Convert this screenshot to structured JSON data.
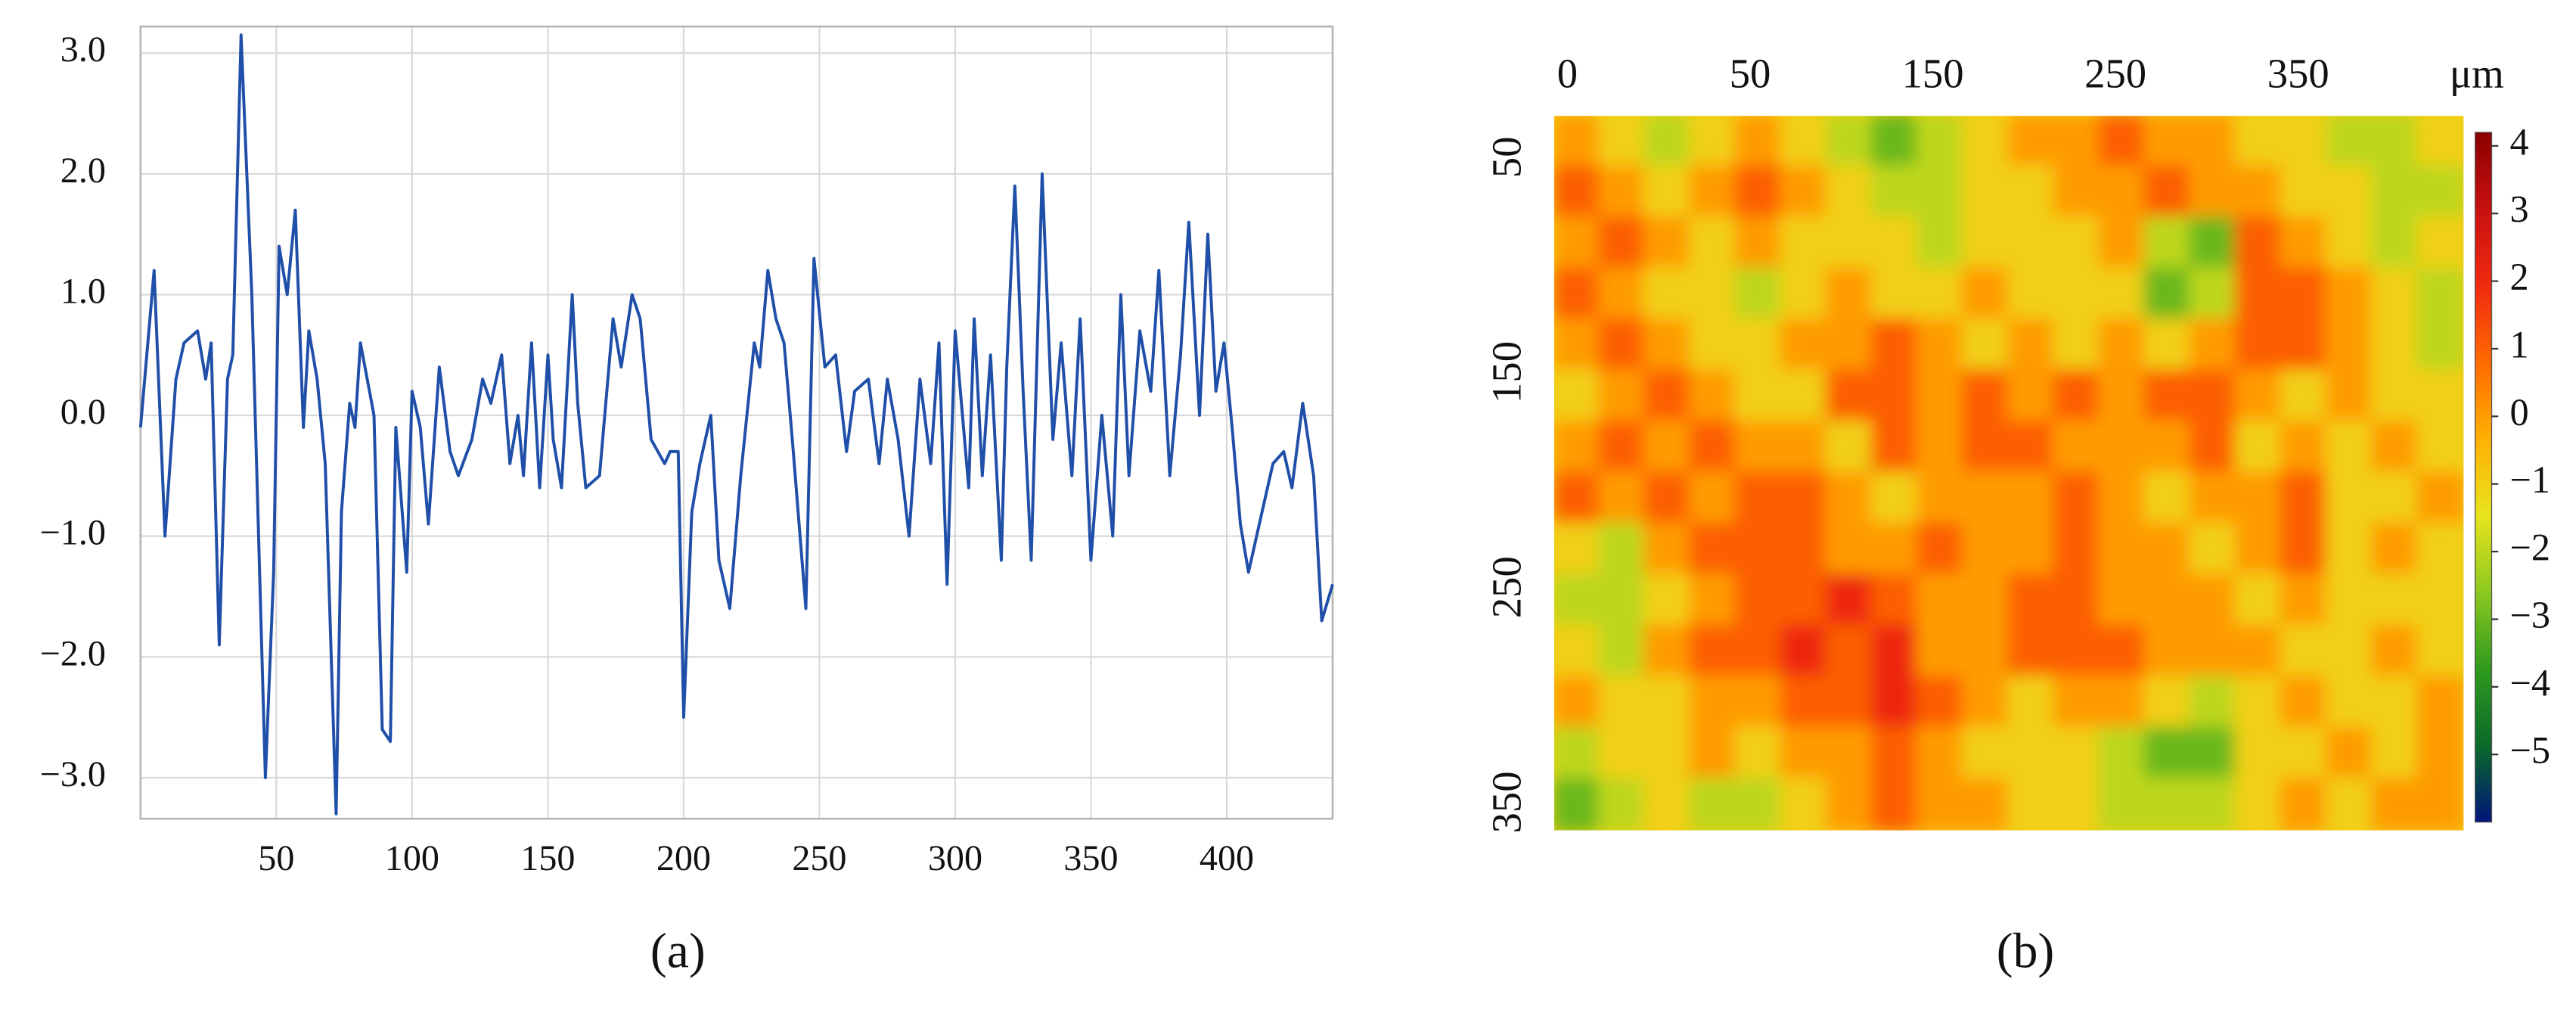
{
  "chart_data": [
    {
      "type": "line",
      "caption": "(a)",
      "color": "#1f4fa8",
      "grid": true,
      "xlim": [
        0,
        439
      ],
      "ylim": [
        -3.34,
        3.22
      ],
      "xticks": [
        50,
        100,
        150,
        200,
        250,
        300,
        350,
        400
      ],
      "yticks": [
        {
          "value": 3,
          "label": "3.0"
        },
        {
          "value": 2,
          "label": "2.0"
        },
        {
          "value": 1,
          "label": "1.0"
        },
        {
          "value": 0,
          "label": "0.0"
        },
        {
          "value": -1,
          "label": "−1.0"
        },
        {
          "value": -2,
          "label": "−2.0"
        },
        {
          "value": -3,
          "label": "−3.0"
        }
      ],
      "x": [
        0,
        5,
        9,
        13,
        16,
        21,
        24,
        26,
        29,
        32,
        34,
        37,
        41,
        46,
        49,
        51,
        54,
        57,
        60,
        62,
        65,
        68,
        72,
        74,
        77,
        79,
        81,
        86,
        89,
        92,
        94,
        98,
        100,
        103,
        106,
        110,
        114,
        117,
        122,
        126,
        129,
        133,
        136,
        139,
        141,
        144,
        147,
        150,
        152,
        155,
        159,
        161,
        164,
        169,
        174,
        177,
        181,
        184,
        188,
        193,
        195,
        198,
        200,
        203,
        206,
        210,
        213,
        217,
        221,
        226,
        228,
        231,
        234,
        237,
        240,
        245,
        248,
        252,
        256,
        260,
        263,
        268,
        272,
        275,
        279,
        283,
        287,
        291,
        294,
        297,
        300,
        305,
        307,
        310,
        313,
        317,
        319,
        322,
        325,
        328,
        332,
        336,
        339,
        343,
        346,
        350,
        354,
        358,
        361,
        364,
        368,
        372,
        375,
        379,
        383,
        386,
        390,
        393,
        396,
        399,
        402,
        405,
        408,
        413,
        417,
        421,
        424,
        428,
        432,
        435,
        439
      ],
      "values": [
        -0.1,
        1.2,
        -1.0,
        0.3,
        0.6,
        0.7,
        0.3,
        0.6,
        -1.9,
        0.3,
        0.5,
        3.15,
        1.0,
        -3.0,
        -1.3,
        1.4,
        1.0,
        1.7,
        -0.1,
        0.7,
        0.3,
        -0.4,
        -3.3,
        -0.8,
        0.1,
        -0.1,
        0.6,
        0.0,
        -2.6,
        -2.7,
        -0.1,
        -1.3,
        0.2,
        -0.1,
        -0.9,
        0.4,
        -0.3,
        -0.5,
        -0.2,
        0.3,
        0.1,
        0.5,
        -0.4,
        0.0,
        -0.5,
        0.6,
        -0.6,
        0.5,
        -0.2,
        -0.6,
        1.0,
        0.1,
        -0.6,
        -0.5,
        0.8,
        0.4,
        1.0,
        0.8,
        -0.2,
        -0.4,
        -0.3,
        -0.3,
        -2.5,
        -0.8,
        -0.4,
        0.0,
        -1.2,
        -1.6,
        -0.5,
        0.6,
        0.4,
        1.2,
        0.8,
        0.6,
        -0.2,
        -1.6,
        1.3,
        0.4,
        0.5,
        -0.3,
        0.2,
        0.3,
        -0.4,
        0.3,
        -0.2,
        -1.0,
        0.3,
        -0.4,
        0.6,
        -1.4,
        0.7,
        -0.6,
        0.8,
        -0.5,
        0.5,
        -1.2,
        0.4,
        1.9,
        0.2,
        -1.2,
        2.0,
        -0.2,
        0.6,
        -0.5,
        0.8,
        -1.2,
        0.0,
        -1.0,
        1.0,
        -0.5,
        0.7,
        0.2,
        1.2,
        -0.5,
        0.5,
        1.6,
        0.0,
        1.5,
        0.2,
        0.6,
        -0.1,
        -0.9,
        -1.3,
        -0.8,
        -0.4,
        -0.3,
        -0.6,
        0.1,
        -0.5,
        -1.7,
        -1.4
      ]
    },
    {
      "type": "heatmap",
      "caption": "(b)",
      "unit": "μm",
      "column_labels": [
        0,
        50,
        150,
        250,
        350
      ],
      "row_labels": [
        50,
        150,
        250,
        350
      ],
      "zlim": [
        -6,
        4.2
      ],
      "colormap": [
        "#00147a",
        "#0a6a2a",
        "#2f9a1e",
        "#8cc820",
        "#e8e41e",
        "#ffb000",
        "#ff6a00",
        "#f02a10",
        "#c81010",
        "#8a0000"
      ],
      "colorbar_ticks": [
        4,
        3,
        2,
        1,
        0,
        {
          "value": -1,
          "label": "−1"
        },
        {
          "value": -2,
          "label": "−2"
        },
        {
          "value": -3,
          "label": "−3"
        },
        {
          "value": -4,
          "label": "−4"
        },
        {
          "value": -5,
          "label": "−5"
        }
      ],
      "z": [
        [
          0,
          -1,
          -2,
          -1,
          0,
          -1,
          -2,
          -3,
          -2,
          -1,
          0,
          0,
          1,
          0,
          0,
          -1,
          -1,
          -2,
          -2,
          -1
        ],
        [
          1,
          0,
          -1,
          0,
          1,
          0,
          -1,
          -2,
          -2,
          -1,
          -1,
          0,
          0,
          1,
          0,
          0,
          -1,
          -1,
          -2,
          -2
        ],
        [
          0,
          1,
          0,
          -1,
          0,
          -1,
          -1,
          -1,
          -2,
          -1,
          -1,
          -1,
          0,
          -2,
          -3,
          1,
          0,
          -1,
          -2,
          -1
        ],
        [
          1,
          0,
          -1,
          -1,
          -2,
          -1,
          0,
          -1,
          -1,
          0,
          -1,
          -1,
          -1,
          -3,
          -2,
          1,
          1,
          0,
          -1,
          -2
        ],
        [
          0,
          1,
          0,
          -1,
          -1,
          0,
          0,
          1,
          0,
          -1,
          0,
          -1,
          0,
          -1,
          0,
          1,
          1,
          0,
          -1,
          -2
        ],
        [
          -1,
          0,
          1,
          0,
          -1,
          -1,
          1,
          1,
          0,
          1,
          0,
          1,
          0,
          1,
          1,
          0,
          -1,
          0,
          -1,
          -1
        ],
        [
          0,
          1,
          0,
          1,
          0,
          0,
          -1,
          1,
          0,
          1,
          1,
          0,
          0,
          0,
          1,
          -1,
          0,
          -1,
          0,
          -1
        ],
        [
          1,
          0,
          1,
          0,
          1,
          1,
          0,
          -1,
          0,
          0,
          0,
          1,
          0,
          -1,
          0,
          0,
          1,
          -1,
          -1,
          0
        ],
        [
          -1,
          -2,
          0,
          1,
          1,
          1,
          0,
          0,
          1,
          0,
          0,
          1,
          0,
          0,
          -1,
          0,
          1,
          -1,
          0,
          -1
        ],
        [
          -2,
          -2,
          -1,
          0,
          1,
          1,
          2,
          1,
          0,
          0,
          1,
          1,
          0,
          0,
          0,
          -1,
          0,
          -1,
          -1,
          -1
        ],
        [
          -1,
          -2,
          0,
          1,
          1,
          2,
          1,
          2,
          0,
          0,
          1,
          1,
          1,
          0,
          0,
          0,
          -1,
          -1,
          0,
          -1
        ],
        [
          0,
          -1,
          -1,
          0,
          0,
          1,
          1,
          2,
          1,
          0,
          -1,
          0,
          0,
          -1,
          -2,
          -1,
          0,
          -1,
          -1,
          0
        ],
        [
          -2,
          -1,
          -1,
          0,
          -1,
          0,
          0,
          1,
          0,
          -1,
          -1,
          -1,
          -2,
          -3,
          -3,
          -1,
          -1,
          0,
          -1,
          0
        ],
        [
          -3,
          -2,
          -1,
          -2,
          -2,
          -1,
          0,
          1,
          0,
          0,
          -1,
          -1,
          -2,
          -2,
          -2,
          -1,
          0,
          -1,
          0,
          0
        ]
      ]
    }
  ]
}
